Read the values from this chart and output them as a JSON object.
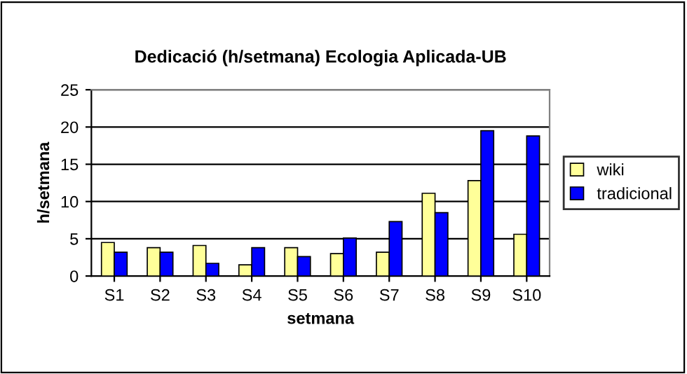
{
  "chart_data": {
    "type": "bar",
    "title": "Dedicació (h/setmana) Ecologia Aplicada-UB",
    "xlabel": "setmana",
    "ylabel": "h/setmana",
    "categories": [
      "S1",
      "S2",
      "S3",
      "S4",
      "S5",
      "S6",
      "S7",
      "S8",
      "S9",
      "S10"
    ],
    "series": [
      {
        "name": "wiki",
        "color": "#ffff99",
        "values": [
          4.5,
          3.8,
          4.1,
          1.5,
          3.8,
          3.0,
          3.2,
          11.1,
          12.8,
          5.6
        ]
      },
      {
        "name": "tradicional",
        "color": "#0000ff",
        "values": [
          3.2,
          3.2,
          1.7,
          3.8,
          2.6,
          5.1,
          7.3,
          8.5,
          19.5,
          18.8
        ]
      }
    ],
    "ylim": [
      0,
      25
    ],
    "yticks": [
      0,
      5,
      10,
      15,
      20,
      25
    ],
    "grid": "y",
    "legend": "right"
  }
}
